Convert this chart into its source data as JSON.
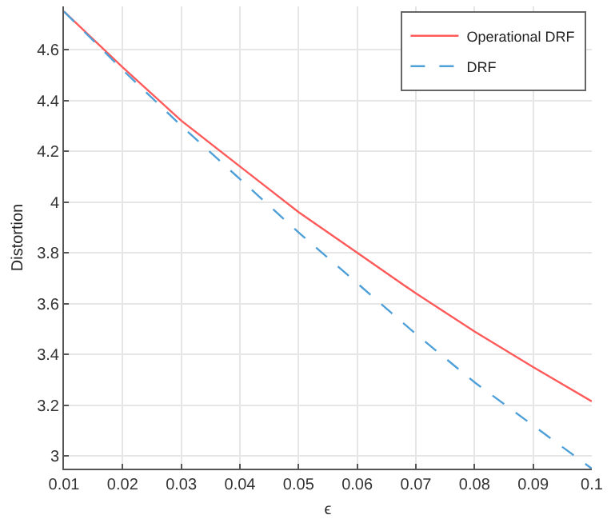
{
  "chart_data": {
    "type": "line",
    "xlabel": "ϵ",
    "ylabel": "Distortion",
    "xlim": [
      0.01,
      0.1
    ],
    "ylim": [
      2.95,
      4.77
    ],
    "xticks": [
      0.01,
      0.02,
      0.03,
      0.04,
      0.05,
      0.06,
      0.07,
      0.08,
      0.09,
      0.1
    ],
    "yticks": [
      3,
      3.2,
      3.4,
      3.6,
      3.8,
      4,
      4.2,
      4.4,
      4.6
    ],
    "grid": true,
    "legend": "top right",
    "marker": "none",
    "series": [
      {
        "name": "Operational DRF",
        "color": "#ff5a5a",
        "line_style": "solid",
        "x": [
          0.01,
          0.02,
          0.03,
          0.04,
          0.05,
          0.06,
          0.07,
          0.08,
          0.09,
          0.1
        ],
        "values": [
          4.75,
          4.53,
          4.32,
          4.14,
          3.96,
          3.8,
          3.64,
          3.49,
          3.35,
          3.215
        ]
      },
      {
        "name": "DRF",
        "color": "#4fa0d8",
        "line_style": "dashed",
        "x": [
          0.01,
          0.02,
          0.03,
          0.04,
          0.05,
          0.06,
          0.07,
          0.08,
          0.09,
          0.1
        ],
        "values": [
          4.75,
          4.52,
          4.3,
          4.09,
          3.88,
          3.68,
          3.48,
          3.29,
          3.12,
          2.95
        ]
      }
    ]
  }
}
